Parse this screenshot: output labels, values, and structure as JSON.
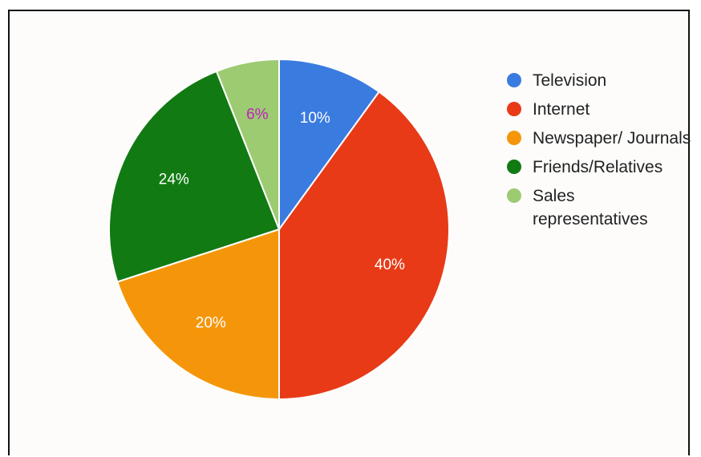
{
  "chart_data": {
    "type": "pie",
    "start_angle_deg": 90,
    "direction": "clockwise",
    "legend_position": "right",
    "slices": [
      {
        "label": "Television",
        "value": 10,
        "display": "10%",
        "color": "#3a7be0",
        "text_color": "#ffffff"
      },
      {
        "label": "Internet",
        "value": 40,
        "display": "40%",
        "color": "#e83a17",
        "text_color": "#ffffff"
      },
      {
        "label": "Newspaper/ Journals",
        "value": 20,
        "display": "20%",
        "color": "#f5960a",
        "text_color": "#ffffff"
      },
      {
        "label": "Friends/Relatives",
        "value": 24,
        "display": "24%",
        "color": "#117a12",
        "text_color": "#ffffff"
      },
      {
        "label": "Sales representatives",
        "value": 6,
        "display": "6%",
        "color": "#9ccb72",
        "text_color": "#c21fc0"
      }
    ]
  }
}
